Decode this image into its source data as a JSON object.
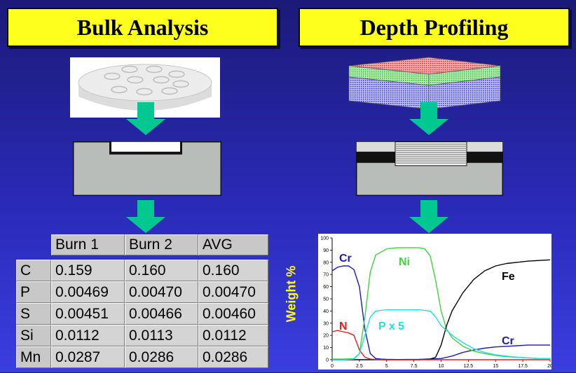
{
  "titles": {
    "left": "Bulk Analysis",
    "right": "Depth Profiling"
  },
  "table": {
    "headers": [
      "Burn 1",
      "Burn 2",
      "AVG"
    ],
    "rows": [
      {
        "element": "C",
        "values": [
          "0.159",
          "0.160",
          "0.160"
        ]
      },
      {
        "element": "P",
        "values": [
          "0.00469",
          "0.00470",
          "0.00470"
        ]
      },
      {
        "element": "S",
        "values": [
          "0.00451",
          "0.00466",
          "0.00460"
        ]
      },
      {
        "element": "Si",
        "values": [
          "0.0112",
          "0.0113",
          "0.0112"
        ]
      },
      {
        "element": "Mn",
        "values": [
          "0.0287",
          "0.0286",
          "0.0286"
        ]
      }
    ]
  },
  "colors": {
    "title_bg": "#ffff1e",
    "arrow": "#00c890",
    "ylabel": "#ffff1e"
  },
  "chart_data": {
    "type": "line",
    "ylabel": "Weight %",
    "xlim": [
      0,
      20
    ],
    "ylim": [
      0,
      100
    ],
    "xticks": [
      "0",
      "2.5",
      "5",
      "7.5",
      "10",
      "12.5",
      "15",
      "17.5",
      "20"
    ],
    "yticks": [
      "0",
      "10",
      "20",
      "30",
      "40",
      "50",
      "60",
      "70",
      "80",
      "90",
      "100"
    ],
    "grid": false,
    "series": [
      {
        "name": "Cr",
        "color": "#1c1cb4",
        "x": [
          0,
          0.5,
          1,
          1.5,
          2,
          2.5,
          3,
          3.5,
          4,
          4.5,
          5,
          6,
          8,
          10,
          11,
          12,
          13,
          14,
          15,
          16,
          17,
          18,
          19,
          20
        ],
        "y": [
          73,
          76,
          77,
          77,
          74,
          60,
          25,
          5,
          1,
          0.5,
          0.3,
          0.2,
          0.3,
          1,
          3,
          6,
          8,
          9.5,
          10.5,
          11,
          11.5,
          12,
          12,
          12
        ]
      },
      {
        "name": "Ni",
        "color": "#3fd43f",
        "x": [
          0,
          1,
          2,
          2.5,
          3,
          3.5,
          4,
          5,
          6,
          7,
          8,
          8.5,
          9,
          9.5,
          10,
          10.5,
          11,
          12,
          13,
          14,
          15,
          16,
          17,
          18,
          19,
          20
        ],
        "y": [
          0.5,
          0.5,
          1,
          5,
          35,
          72,
          86,
          91,
          92,
          92,
          92,
          91,
          85,
          65,
          40,
          25,
          18,
          11,
          7,
          5,
          3.5,
          2.5,
          2,
          1.5,
          1,
          1
        ]
      },
      {
        "name": "Fe",
        "color": "#000000",
        "x": [
          0,
          2,
          4,
          6,
          8,
          9,
          9.5,
          10,
          10.5,
          11,
          12,
          13,
          14,
          15,
          16,
          17,
          18,
          19,
          20
        ],
        "y": [
          0,
          0,
          0,
          0,
          0,
          0.5,
          2,
          12,
          28,
          40,
          55,
          66,
          73,
          77,
          79,
          80,
          81,
          81.5,
          82
        ]
      },
      {
        "name": "N",
        "color": "#e02020",
        "x": [
          0,
          0.5,
          1,
          1.5,
          2,
          2.5,
          3,
          3.5,
          4,
          5,
          10,
          20
        ],
        "y": [
          23,
          24,
          23,
          22,
          20,
          8,
          2,
          0.5,
          0.2,
          0,
          0,
          0
        ]
      },
      {
        "name": "P x 5",
        "color": "#20e0e0",
        "x": [
          0,
          1,
          2,
          2.5,
          3,
          3.5,
          4,
          5,
          6,
          7,
          8,
          9,
          9.5,
          10,
          10.5,
          11,
          12,
          13,
          14,
          15,
          16,
          17,
          18,
          19,
          20
        ],
        "y": [
          0,
          0,
          0.5,
          5,
          20,
          35,
          40,
          41,
          41,
          41,
          41,
          40,
          35,
          28,
          24,
          20,
          14,
          9,
          6,
          4,
          3,
          2,
          1.5,
          1,
          1
        ]
      }
    ],
    "annotations": [
      {
        "text": "Cr",
        "color": "#1c1cb4"
      },
      {
        "text": "Ni",
        "color": "#3fd43f"
      },
      {
        "text": "Fe",
        "color": "#000000"
      },
      {
        "text": "N",
        "color": "#e02020"
      },
      {
        "text": "P x 5",
        "color": "#20e0e0"
      },
      {
        "text": "Cr",
        "color": "#1c1cb4"
      }
    ]
  }
}
